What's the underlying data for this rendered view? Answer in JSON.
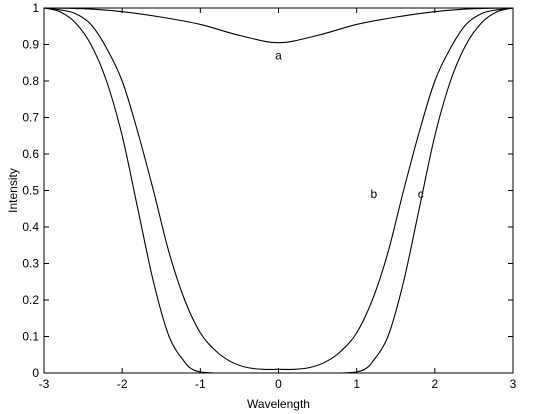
{
  "chart_data": {
    "type": "line",
    "title": "",
    "xlabel": "Wavelength",
    "ylabel": "Intensity",
    "xlim": [
      -3,
      3
    ],
    "ylim": [
      0,
      1
    ],
    "x_ticks": [
      -3,
      -2,
      -1,
      0,
      1,
      2,
      3
    ],
    "x_tick_labels": [
      "-3",
      "-2",
      "-1",
      "0",
      "1",
      "2",
      "3"
    ],
    "y_ticks": [
      0,
      0.1,
      0.2,
      0.3,
      0.4,
      0.5,
      0.6,
      0.7,
      0.8,
      0.9,
      1
    ],
    "y_tick_labels": [
      "0",
      "0.1",
      "0.2",
      "0.3",
      "0.4",
      "0.5",
      "0.6",
      "0.7",
      "0.8",
      "0.9",
      "1"
    ],
    "grid": false,
    "legend": "none",
    "line_color": "#000000",
    "series": [
      {
        "label": "a",
        "label_at": [
          0,
          0.87
        ],
        "x": [
          -3,
          -2.5,
          -2,
          -1.5,
          -1,
          -0.5,
          0,
          0.5,
          1,
          1.5,
          2,
          2.5,
          3
        ],
        "y": [
          1,
          0.998,
          0.99,
          0.975,
          0.955,
          0.925,
          0.905,
          0.925,
          0.955,
          0.975,
          0.99,
          0.998,
          1
        ]
      },
      {
        "label": "b",
        "label_at": [
          1.22,
          0.49
        ],
        "x": [
          -3,
          -2.8,
          -2.6,
          -2.4,
          -2.2,
          -2,
          -1.8,
          -1.6,
          -1.4,
          -1.2,
          -1,
          -0.8,
          -0.6,
          -0.4,
          -0.2,
          0,
          0.2,
          0.4,
          0.6,
          0.8,
          1,
          1.2,
          1.4,
          1.6,
          1.8,
          2,
          2.2,
          2.4,
          2.6,
          2.8,
          3
        ],
        "y": [
          1,
          0.995,
          0.985,
          0.955,
          0.89,
          0.8,
          0.66,
          0.5,
          0.33,
          0.2,
          0.11,
          0.06,
          0.03,
          0.015,
          0.01,
          0.01,
          0.01,
          0.015,
          0.03,
          0.06,
          0.11,
          0.2,
          0.33,
          0.5,
          0.66,
          0.8,
          0.89,
          0.955,
          0.985,
          0.995,
          1
        ]
      },
      {
        "label": "c",
        "label_at": [
          1.82,
          0.49
        ],
        "x": [
          -3,
          -2.8,
          -2.6,
          -2.4,
          -2.2,
          -2,
          -1.8,
          -1.6,
          -1.4,
          -1.2,
          -1.1,
          -1,
          -0.9,
          -0.8,
          -0.7,
          0,
          0.7,
          0.8,
          0.9,
          1,
          1.1,
          1.2,
          1.4,
          1.6,
          1.8,
          2,
          2.2,
          2.4,
          2.6,
          2.8,
          3
        ],
        "y": [
          1,
          0.99,
          0.96,
          0.9,
          0.8,
          0.65,
          0.45,
          0.25,
          0.1,
          0.03,
          0.01,
          0.003,
          0.001,
          0,
          0,
          0,
          0,
          0,
          0.001,
          0.003,
          0.01,
          0.03,
          0.1,
          0.25,
          0.45,
          0.65,
          0.8,
          0.9,
          0.96,
          0.99,
          1
        ]
      }
    ]
  }
}
